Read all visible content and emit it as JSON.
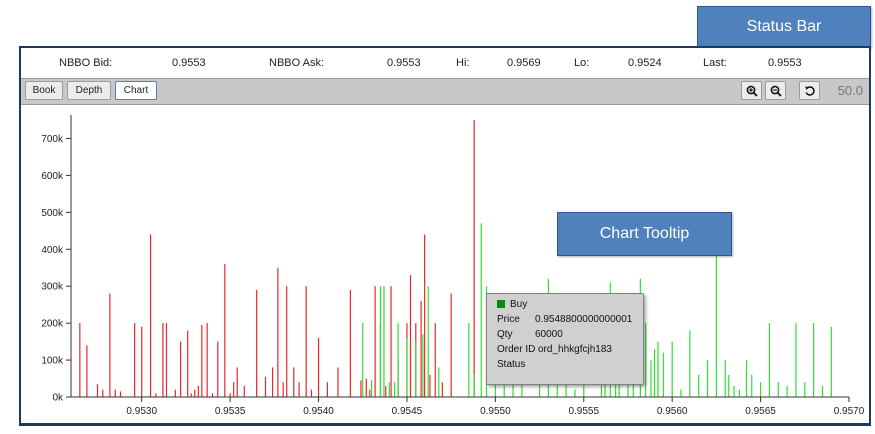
{
  "callouts": {
    "status_bar": "Status Bar",
    "chart_tooltip": "Chart Tooltip"
  },
  "status_bar": {
    "nbbo_bid_label": "NBBO Bid:",
    "nbbo_bid_value": "0.9553",
    "nbbo_ask_label": "NBBO Ask:",
    "nbbo_ask_value": "0.9553",
    "hi_label": "Hi:",
    "hi_value": "0.9569",
    "lo_label": "Lo:",
    "lo_value": "0.9524",
    "last_label": "Last:",
    "last_value": "0.9553"
  },
  "tabs": [
    "Book",
    "Depth",
    "Chart"
  ],
  "toolbar": {
    "zoom_in_icon": "zoom-in-icon",
    "zoom_out_icon": "zoom-out-icon",
    "reset_icon": "reset-icon",
    "zoom_value": "50.0"
  },
  "tooltip": {
    "side": "Buy",
    "side_color": "#0a8a0a",
    "price_label": "Price",
    "price_value": "0.9548800000000001",
    "qty_label": "Qty",
    "qty_value": "60000",
    "order_id_label": "Order ID",
    "order_id_value": "ord_hhkgfcjh183",
    "status_label": "Status"
  },
  "chart_data": {
    "type": "bar",
    "xlim": [
      0.9526,
      0.957
    ],
    "ylim": [
      0,
      750000
    ],
    "x_ticks": [
      0.953,
      0.9535,
      0.954,
      0.9545,
      0.955,
      0.9555,
      0.956,
      0.9565,
      0.957
    ],
    "x_tick_labels": [
      "0.9530",
      "0.9535",
      "0.9540",
      "0.9545",
      "0.9550",
      "0.9555",
      "0.9560",
      "0.9565",
      "0.9570"
    ],
    "y_ticks": [
      0,
      100000,
      200000,
      300000,
      400000,
      500000,
      600000,
      700000
    ],
    "y_tick_labels": [
      "0k",
      "100k",
      "200k",
      "300k",
      "400k",
      "500k",
      "600k",
      "700k"
    ],
    "colors": {
      "sell": "#e8262a",
      "buy": "#33dd33"
    },
    "series": [
      {
        "side": "sell",
        "points": [
          [
            0.95265,
            200000
          ],
          [
            0.95269,
            140000
          ],
          [
            0.95275,
            35000
          ],
          [
            0.95278,
            20000
          ],
          [
            0.95282,
            280000
          ],
          [
            0.95285,
            20000
          ],
          [
            0.95288,
            15000
          ],
          [
            0.95296,
            200000
          ],
          [
            0.953,
            190000
          ],
          [
            0.95305,
            440000
          ],
          [
            0.95308,
            10000
          ],
          [
            0.95312,
            200000
          ],
          [
            0.95314,
            200000
          ],
          [
            0.95319,
            20000
          ],
          [
            0.95322,
            150000
          ],
          [
            0.95326,
            180000
          ],
          [
            0.95328,
            10000
          ],
          [
            0.9533,
            20000
          ],
          [
            0.95332,
            30000
          ],
          [
            0.95334,
            195000
          ],
          [
            0.95337,
            200000
          ],
          [
            0.9534,
            10000
          ],
          [
            0.95343,
            150000
          ],
          [
            0.95347,
            360000
          ],
          [
            0.9535,
            10000
          ],
          [
            0.95352,
            40000
          ],
          [
            0.95354,
            80000
          ],
          [
            0.95358,
            30000
          ],
          [
            0.95365,
            290000
          ],
          [
            0.9537,
            55000
          ],
          [
            0.95374,
            80000
          ],
          [
            0.95377,
            350000
          ],
          [
            0.9538,
            40000
          ],
          [
            0.95382,
            300000
          ],
          [
            0.95386,
            80000
          ],
          [
            0.95389,
            40000
          ],
          [
            0.95393,
            300000
          ],
          [
            0.95396,
            20000
          ],
          [
            0.954,
            160000
          ],
          [
            0.95405,
            40000
          ],
          [
            0.95411,
            80000
          ],
          [
            0.95418,
            290000
          ],
          [
            0.95424,
            45000
          ],
          [
            0.95427,
            50000
          ],
          [
            0.95429,
            20000
          ],
          [
            0.95432,
            300000
          ],
          [
            0.95435,
            200000
          ],
          [
            0.95438,
            30000
          ],
          [
            0.95441,
            300000
          ],
          [
            0.95445,
            100000
          ],
          [
            0.9545,
            200000
          ],
          [
            0.95452,
            330000
          ],
          [
            0.95455,
            200000
          ],
          [
            0.95458,
            260000
          ],
          [
            0.9546,
            440000
          ],
          [
            0.95463,
            60000
          ],
          [
            0.95466,
            200000
          ],
          [
            0.9547,
            40000
          ],
          [
            0.95475,
            280000
          ],
          [
            0.95488,
            750000
          ]
        ]
      },
      {
        "side": "buy",
        "points": [
          [
            0.95425,
            200000
          ],
          [
            0.9543,
            45000
          ],
          [
            0.95435,
            300000
          ],
          [
            0.95437,
            300000
          ],
          [
            0.9544,
            40000
          ],
          [
            0.95443,
            40000
          ],
          [
            0.95445,
            200000
          ],
          [
            0.9545,
            160000
          ],
          [
            0.95455,
            150000
          ],
          [
            0.95459,
            170000
          ],
          [
            0.95462,
            300000
          ],
          [
            0.95468,
            80000
          ],
          [
            0.95485,
            200000
          ],
          [
            0.95488,
            60000
          ],
          [
            0.95492,
            470000
          ],
          [
            0.95495,
            300000
          ],
          [
            0.955,
            200000
          ],
          [
            0.95505,
            100000
          ],
          [
            0.9551,
            100000
          ],
          [
            0.95515,
            180000
          ],
          [
            0.95525,
            40000
          ],
          [
            0.9553,
            320000
          ],
          [
            0.95535,
            180000
          ],
          [
            0.9554,
            40000
          ],
          [
            0.95545,
            20000
          ],
          [
            0.9555,
            200000
          ],
          [
            0.9556,
            50000
          ],
          [
            0.95562,
            80000
          ],
          [
            0.95565,
            310000
          ],
          [
            0.95568,
            150000
          ],
          [
            0.9557,
            50000
          ],
          [
            0.95575,
            200000
          ],
          [
            0.95578,
            130000
          ],
          [
            0.95582,
            320000
          ],
          [
            0.95585,
            200000
          ],
          [
            0.95588,
            100000
          ],
          [
            0.9559,
            130000
          ],
          [
            0.95592,
            150000
          ],
          [
            0.95595,
            120000
          ],
          [
            0.956,
            150000
          ],
          [
            0.95605,
            20000
          ],
          [
            0.9561,
            180000
          ],
          [
            0.95615,
            60000
          ],
          [
            0.9562,
            100000
          ],
          [
            0.95625,
            400000
          ],
          [
            0.9563,
            100000
          ],
          [
            0.95632,
            60000
          ],
          [
            0.95635,
            30000
          ],
          [
            0.95638,
            20000
          ],
          [
            0.95642,
            100000
          ],
          [
            0.95645,
            60000
          ],
          [
            0.9565,
            40000
          ],
          [
            0.95655,
            200000
          ],
          [
            0.9566,
            40000
          ],
          [
            0.95665,
            30000
          ],
          [
            0.9567,
            200000
          ],
          [
            0.95675,
            40000
          ],
          [
            0.9568,
            200000
          ],
          [
            0.95685,
            30000
          ],
          [
            0.9569,
            190000
          ]
        ]
      }
    ]
  }
}
